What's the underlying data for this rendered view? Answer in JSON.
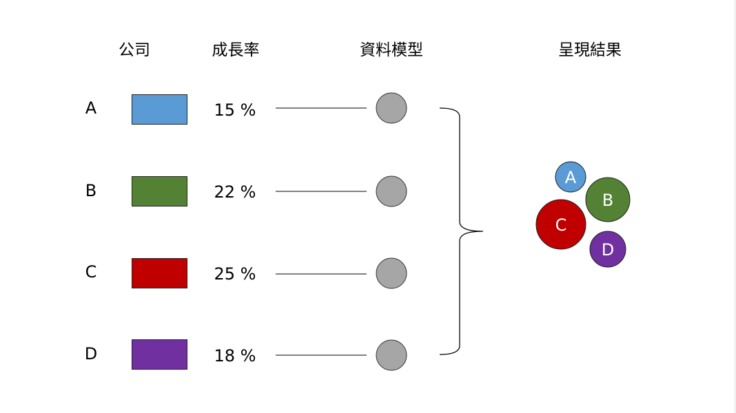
{
  "headers": {
    "company": "公司",
    "growth_rate": "成長率",
    "data_model": "資料模型",
    "result": "呈現結果"
  },
  "rows": [
    {
      "company": "A",
      "rate": "15 %",
      "color": "#5B9BD5"
    },
    {
      "company": "B",
      "rate": "22 %",
      "color": "#548235"
    },
    {
      "company": "C",
      "rate": "25 %",
      "color": "#C00000"
    },
    {
      "company": "D",
      "rate": "18 %",
      "color": "#7030A0"
    }
  ],
  "model_node_color": "#A6A6A6",
  "result_bubbles": [
    {
      "label": "A",
      "color": "#5B9BD5",
      "growth": 15
    },
    {
      "label": "B",
      "color": "#548235",
      "growth": 22
    },
    {
      "label": "C",
      "color": "#C00000",
      "growth": 25
    },
    {
      "label": "D",
      "color": "#7030A0",
      "growth": 18
    }
  ]
}
